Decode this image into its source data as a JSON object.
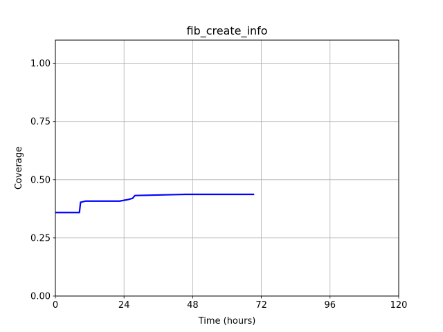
{
  "chart_data": {
    "type": "line",
    "title": "fib_create_info",
    "xlabel": "Time (hours)",
    "ylabel": "Coverage",
    "xlim": [
      0,
      120
    ],
    "ylim": [
      0,
      1.1
    ],
    "xticks": [
      0,
      24,
      48,
      72,
      96,
      120
    ],
    "xtick_labels": [
      "0",
      "24",
      "48",
      "72",
      "96",
      "120"
    ],
    "yticks": [
      0,
      0.25,
      0.5,
      0.75,
      1.0
    ],
    "ytick_labels": [
      "0.00",
      "0.25",
      "0.50",
      "0.75",
      "1.00"
    ],
    "grid": true,
    "legend": "none",
    "series": [
      {
        "name": "coverage",
        "color": "#0000ff",
        "step": true,
        "x": [
          0,
          8.4,
          8.8,
          10.5,
          22.5,
          25.5,
          27.0,
          27.8,
          45.5,
          69.5
        ],
        "y": [
          0.359,
          0.359,
          0.403,
          0.408,
          0.408,
          0.415,
          0.42,
          0.432,
          0.437,
          0.437
        ]
      }
    ]
  }
}
